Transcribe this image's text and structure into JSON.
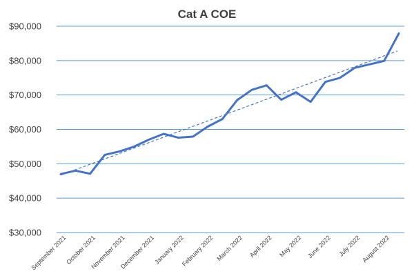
{
  "chart_data": {
    "type": "line",
    "title": "Cat A COE",
    "xlabel": "",
    "ylabel": "",
    "ylim": [
      30000,
      90000
    ],
    "yticks": [
      "$30,000",
      "$40,000",
      "$50,000",
      "$60,000",
      "$70,000",
      "$80,000",
      "$90,000"
    ],
    "ytick_values": [
      30000,
      40000,
      50000,
      60000,
      70000,
      80000,
      90000
    ],
    "x_labels": [
      "September 2021",
      "October 2021",
      "November 2021",
      "December 2021",
      "January 2022",
      "February 2022",
      "March 2022",
      "April 2022",
      "May 2022",
      "June 2022",
      "July 2022",
      "August 2022"
    ],
    "grid": "horizontal",
    "series": [
      {
        "type": "line",
        "values": [
          47000,
          48000,
          47100,
          52600,
          53600,
          55000,
          57000,
          58700,
          57600,
          57900,
          60800,
          63000,
          68500,
          71500,
          72800,
          68600,
          70800,
          68000,
          73800,
          75000,
          77900,
          78900,
          79900,
          87900
        ],
        "color": "#4472C4"
      },
      {
        "type": "linear-trend",
        "values": [
          46700,
          82800
        ],
        "color": "#4472C4",
        "style": "dashed"
      }
    ]
  }
}
